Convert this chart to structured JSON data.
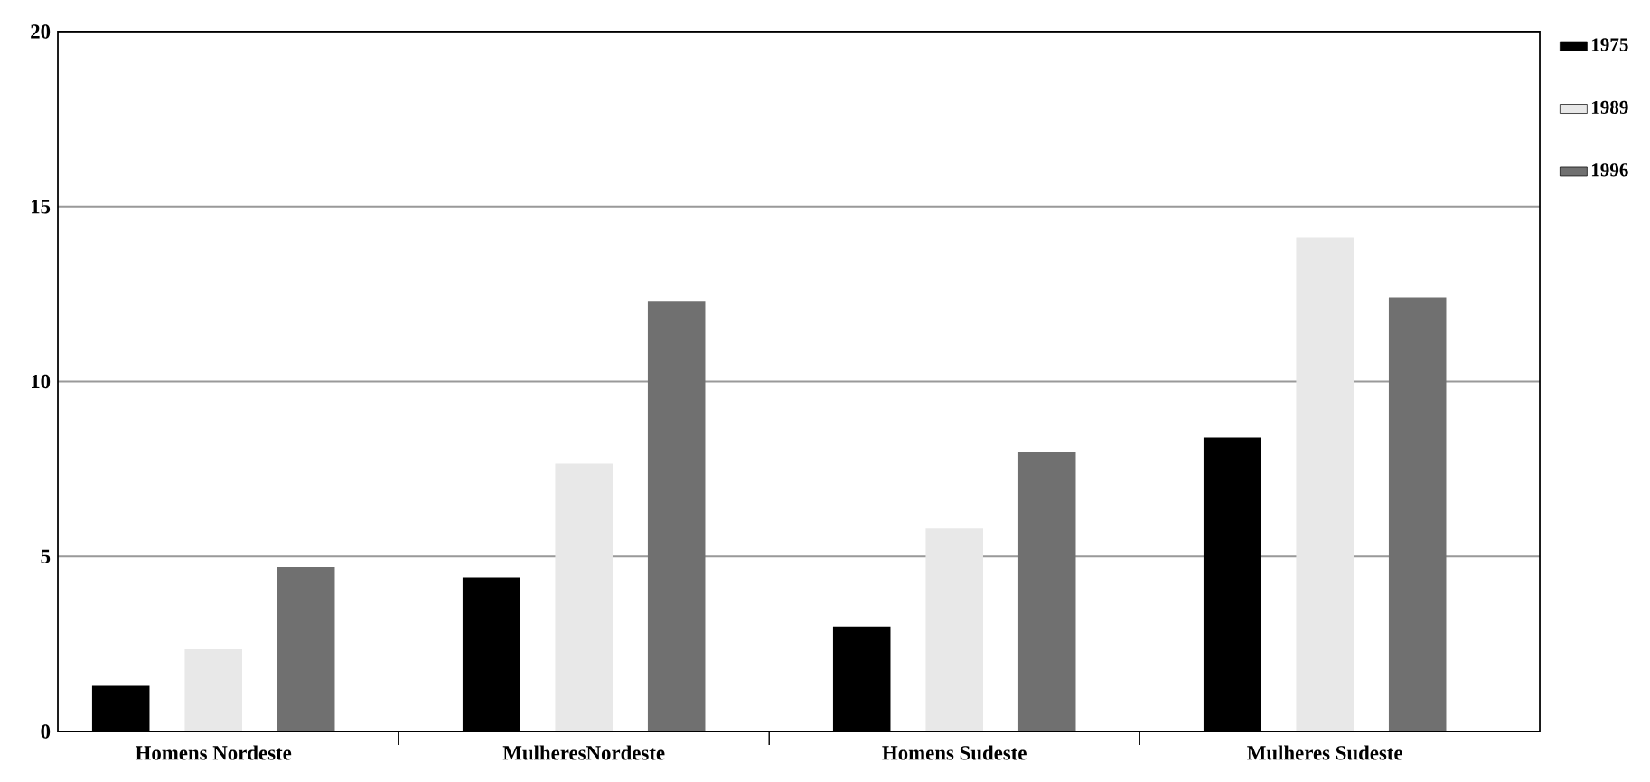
{
  "chart_data": {
    "type": "bar",
    "categories": [
      "Homens Nordeste",
      "MulheresNordeste",
      "Homens Sudeste",
      "Mulheres Sudeste"
    ],
    "series": [
      {
        "name": "1975",
        "color": "#000000",
        "values": [
          1.3,
          4.4,
          3.0,
          8.4
        ]
      },
      {
        "name": "1989",
        "color": "#e8e8e8",
        "values": [
          2.35,
          7.65,
          5.8,
          14.1
        ]
      },
      {
        "name": "1996",
        "color": "#707070",
        "values": [
          4.7,
          12.3,
          8.0,
          12.4
        ]
      }
    ],
    "ylim": [
      0,
      20
    ],
    "yticks": [
      0,
      5,
      10,
      15,
      20
    ],
    "grid": "y",
    "legend": "top right"
  }
}
